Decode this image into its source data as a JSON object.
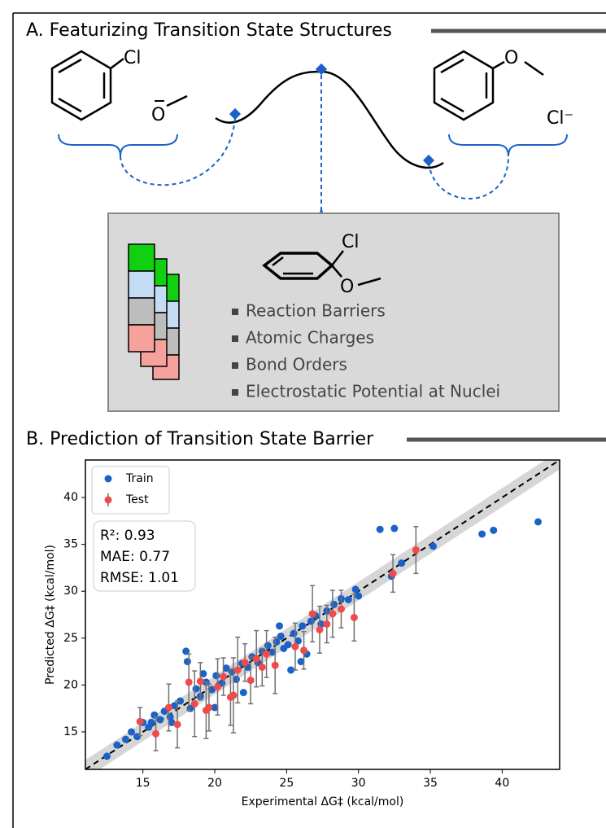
{
  "panel_a": {
    "title": "A. Featurizing Transition State Structures",
    "reactant_labels": [
      "Cl",
      "O"
    ],
    "product_labels": [
      "O",
      "Cl⁻"
    ],
    "ts_labels": [
      "Cl",
      "O"
    ],
    "features": [
      "Reaction Barriers",
      "Atomic Charges",
      "Bond Orders",
      "Electrostatic Potential at Nuclei"
    ]
  },
  "panel_b": {
    "title": "B. Prediction of Transition State Barrier"
  },
  "chart_data": {
    "type": "scatter",
    "xlabel": "Experimental ΔG‡ (kcal/mol)",
    "ylabel": "Predicted ΔG‡ (kcal/mol)",
    "xlim": [
      11,
      44
    ],
    "ylim": [
      11,
      44
    ],
    "xticks": [
      15,
      20,
      25,
      30,
      35,
      40
    ],
    "yticks": [
      15,
      20,
      25,
      30,
      35,
      40
    ],
    "parity_band": 1,
    "legend": "upper left",
    "stats": [
      "R²: 0.93",
      "MAE: 0.77",
      "RMSE: 1.01"
    ],
    "series": [
      {
        "name": "Train",
        "color": "#1a62c8",
        "x": [
          12.5,
          13.2,
          13.8,
          14.2,
          14.6,
          15.0,
          15.4,
          15.8,
          16.2,
          16.5,
          16.9,
          17.2,
          17.6,
          18.0,
          18.1,
          18.3,
          18.7,
          19.0,
          19.4,
          19.8,
          20.1,
          20.5,
          20.8,
          21.2,
          21.5,
          21.9,
          22.3,
          22.6,
          23.0,
          23.3,
          23.7,
          24.0,
          24.3,
          24.6,
          24.8,
          25.1,
          25.3,
          25.5,
          25.8,
          26.1,
          26.4,
          26.7,
          27.0,
          27.4,
          27.8,
          28.3,
          28.8,
          29.3,
          29.8,
          30.0,
          31.5,
          32.5,
          32.3,
          33.0,
          35.2,
          38.6,
          39.4,
          42.5,
          17.0,
          22.0,
          20.0,
          26.0,
          24.5,
          19.2,
          15.6
        ],
        "y": [
          12.4,
          13.6,
          14.2,
          15.0,
          14.5,
          16.0,
          15.5,
          16.8,
          16.3,
          17.2,
          16.6,
          17.8,
          18.3,
          23.6,
          22.5,
          17.5,
          19.6,
          18.8,
          20.3,
          19.5,
          21.0,
          20.2,
          21.8,
          21.4,
          20.6,
          22.3,
          21.9,
          23.0,
          22.4,
          23.6,
          24.2,
          23.5,
          24.6,
          25.2,
          23.9,
          24.3,
          21.6,
          25.5,
          24.7,
          26.3,
          23.3,
          26.8,
          27.4,
          26.5,
          27.9,
          28.6,
          29.2,
          29.1,
          30.2,
          29.5,
          36.6,
          36.7,
          31.6,
          33.0,
          34.8,
          36.1,
          36.5,
          37.4,
          16.0,
          19.2,
          17.6,
          22.5,
          26.3,
          21.2,
          16.0
        ]
      },
      {
        "name": "Test",
        "color": "#f04b4b",
        "error_color": "#707070",
        "x": [
          14.8,
          15.9,
          16.8,
          17.4,
          18.2,
          18.6,
          19.0,
          19.6,
          20.2,
          20.6,
          21.1,
          21.6,
          22.1,
          22.5,
          22.9,
          23.3,
          23.6,
          24.2,
          25.6,
          26.2,
          26.8,
          27.3,
          27.8,
          28.2,
          28.8,
          29.7,
          32.4,
          34.0,
          21.3,
          19.4
        ],
        "y": [
          16.1,
          14.8,
          17.6,
          15.8,
          20.3,
          18.0,
          20.4,
          17.6,
          19.8,
          20.9,
          18.7,
          21.6,
          22.4,
          20.5,
          22.8,
          21.9,
          23.3,
          22.1,
          24.1,
          23.7,
          27.6,
          25.9,
          26.5,
          27.6,
          28.1,
          27.2,
          31.9,
          34.4,
          18.9,
          17.3
        ],
        "err": [
          1.5,
          1.8,
          2.5,
          2.5,
          3,
          3.5,
          2,
          2.5,
          3,
          2,
          3,
          3.5,
          2,
          2.5,
          3,
          2,
          2.5,
          3,
          2.5,
          2,
          3,
          2.5,
          2,
          2.5,
          2,
          2.5,
          2,
          2.5,
          4,
          3
        ]
      }
    ]
  }
}
